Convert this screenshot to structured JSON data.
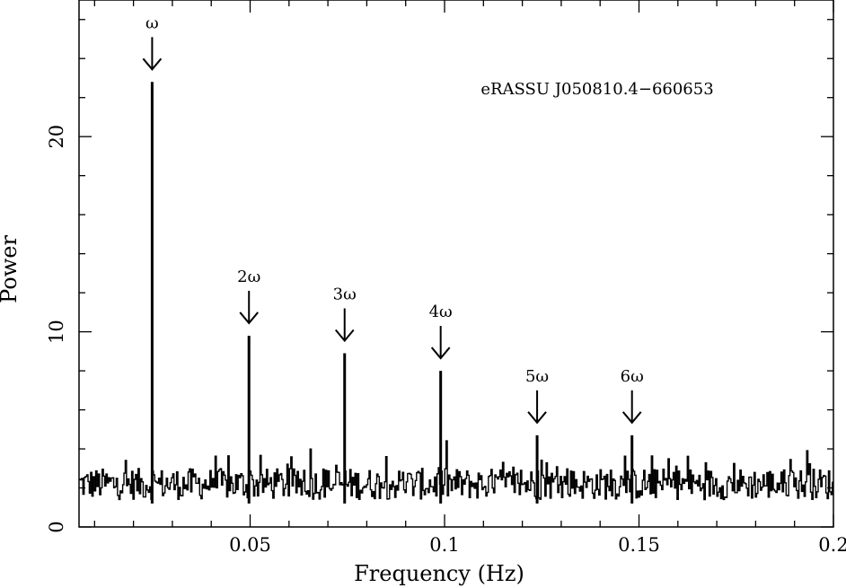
{
  "chart_data": {
    "type": "line",
    "title": "",
    "annotation": "eRASSU J050810.4−660653",
    "xlabel": "Frequency (Hz)",
    "ylabel": "Power",
    "xlim": [
      0.006,
      0.2
    ],
    "ylim": [
      0,
      27
    ],
    "x_ticks": [
      0.05,
      0.1,
      0.15,
      0.2
    ],
    "x_tick_labels": [
      "0.05",
      "0.1",
      "0.15",
      "0.2"
    ],
    "y_ticks": [
      0,
      10,
      20
    ],
    "y_tick_labels": [
      "0",
      "10",
      "20"
    ],
    "x_minor_step": 0.01,
    "y_minor_step": 2,
    "grid": false,
    "legend": "none",
    "noise_level": 2.2,
    "peaks": [
      {
        "label": "ω",
        "x": 0.0248,
        "y": 22.8
      },
      {
        "label": "2ω",
        "x": 0.0497,
        "y": 9.8
      },
      {
        "label": "3ω",
        "x": 0.0743,
        "y": 8.9
      },
      {
        "label": "4ω",
        "x": 0.099,
        "y": 8.0
      },
      {
        "label": "5ω",
        "x": 0.1238,
        "y": 4.7
      },
      {
        "label": "6ω",
        "x": 0.1482,
        "y": 4.7
      }
    ],
    "color": "#000000"
  }
}
